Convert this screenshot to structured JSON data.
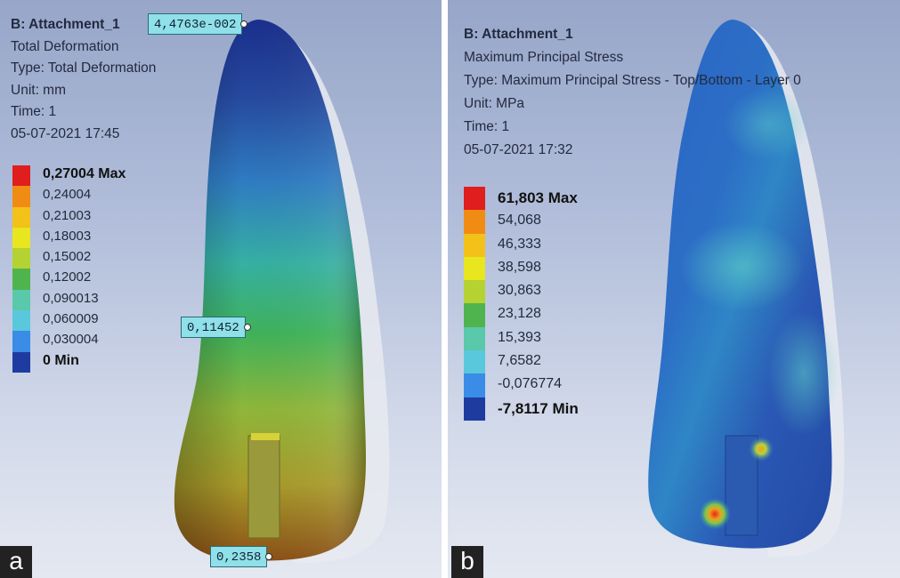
{
  "panel_a": {
    "corner_label": "a",
    "info": {
      "title": "B: Attachment_1",
      "result": "Total Deformation",
      "type": "Type: Total Deformation",
      "unit": "Unit: mm",
      "time": "Time: 1",
      "date": "05-07-2021 17:45"
    },
    "legend": [
      {
        "label": "0,27004 Max",
        "color": "#e01e1e"
      },
      {
        "label": "0,24004",
        "color": "#f08c14"
      },
      {
        "label": "0,21003",
        "color": "#f2c21a"
      },
      {
        "label": "0,18003",
        "color": "#e8e61e"
      },
      {
        "label": "0,15002",
        "color": "#b4d232"
      },
      {
        "label": "0,12002",
        "color": "#50b44e"
      },
      {
        "label": "0,090013",
        "color": "#5ac8aa"
      },
      {
        "label": "0,060009",
        "color": "#5ac8dc"
      },
      {
        "label": "0,030004",
        "color": "#3a8ce6"
      },
      {
        "label": "0 Min",
        "color": "#1e3ca0"
      }
    ],
    "probes": [
      {
        "label": "4,4763e-002"
      },
      {
        "label": "0,11452"
      },
      {
        "label": "0,2358"
      }
    ]
  },
  "panel_b": {
    "corner_label": "b",
    "info": {
      "title": "B: Attachment_1",
      "result": "Maximum Principal Stress",
      "type": "Type: Maximum Principal Stress - Top/Bottom - Layer 0",
      "unit": "Unit: MPa",
      "time": "Time: 1",
      "date": "05-07-2021 17:32"
    },
    "legend": [
      {
        "label": "61,803 Max",
        "color": "#e01e1e"
      },
      {
        "label": "54,068",
        "color": "#f08c14"
      },
      {
        "label": "46,333",
        "color": "#f2c21a"
      },
      {
        "label": "38,598",
        "color": "#e8e61e"
      },
      {
        "label": "30,863",
        "color": "#b4d232"
      },
      {
        "label": "23,128",
        "color": "#50b44e"
      },
      {
        "label": "15,393",
        "color": "#5ac8aa"
      },
      {
        "label": "7,6582",
        "color": "#5ac8dc"
      },
      {
        "label": "-0,076774",
        "color": "#3a8ce6"
      },
      {
        "label": "-7,8117 Min",
        "color": "#1e3ca0"
      }
    ]
  }
}
